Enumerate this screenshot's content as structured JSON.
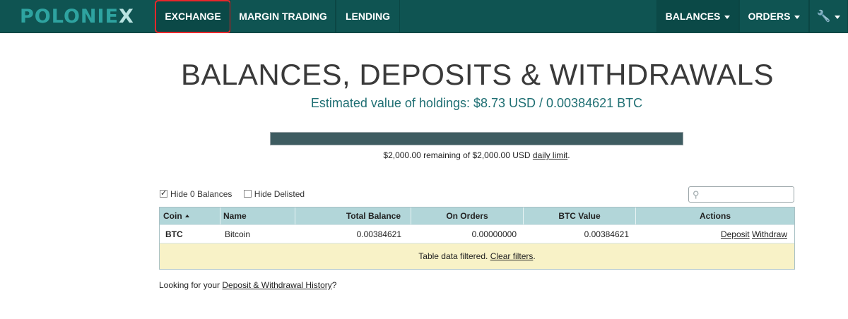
{
  "nav": {
    "logo_main": "POLONIE",
    "logo_x": "X",
    "items": [
      {
        "label": "EXCHANGE"
      },
      {
        "label": "MARGIN TRADING"
      },
      {
        "label": "LENDING"
      }
    ],
    "right": [
      {
        "label": "BALANCES"
      },
      {
        "label": "ORDERS"
      }
    ],
    "tools_icon": "wrench-icon"
  },
  "page": {
    "title": "BALANCES, DEPOSITS & WITHDRAWALS",
    "estimate": "Estimated value of holdings: $8.73 USD / 0.00384621 BTC"
  },
  "limit": {
    "fraction_remaining": 1.0,
    "text": "$2,000.00 remaining of $2,000.00 USD ",
    "link": "daily limit",
    "end": "."
  },
  "filters": {
    "hide_zero_label": "Hide 0 Balances",
    "hide_zero_checked": true,
    "hide_delisted_label": "Hide Delisted",
    "hide_delisted_checked": false,
    "search_placeholder": ""
  },
  "table": {
    "headers": {
      "coin": "Coin",
      "name": "Name",
      "total": "Total Balance",
      "orders": "On Orders",
      "btc": "BTC Value",
      "actions": "Actions"
    },
    "rows": [
      {
        "coin": "BTC",
        "name": "Bitcoin",
        "total": "0.00384621",
        "orders": "0.00000000",
        "btc": "0.00384621",
        "deposit": "Deposit",
        "withdraw": "Withdraw"
      }
    ],
    "filtered_text": "Table data filtered. ",
    "clear_link": "Clear filters",
    "filtered_end": "."
  },
  "footer": {
    "text": "Looking for your ",
    "link": "Deposit & Withdrawal History",
    "end": "?"
  },
  "colors": {
    "nav_bg": "#0f5452",
    "accent_teal": "#1f6f73",
    "table_header": "#b2d6d9",
    "filter_row": "#f8f2c7",
    "highlight_red": "#e8272b"
  }
}
